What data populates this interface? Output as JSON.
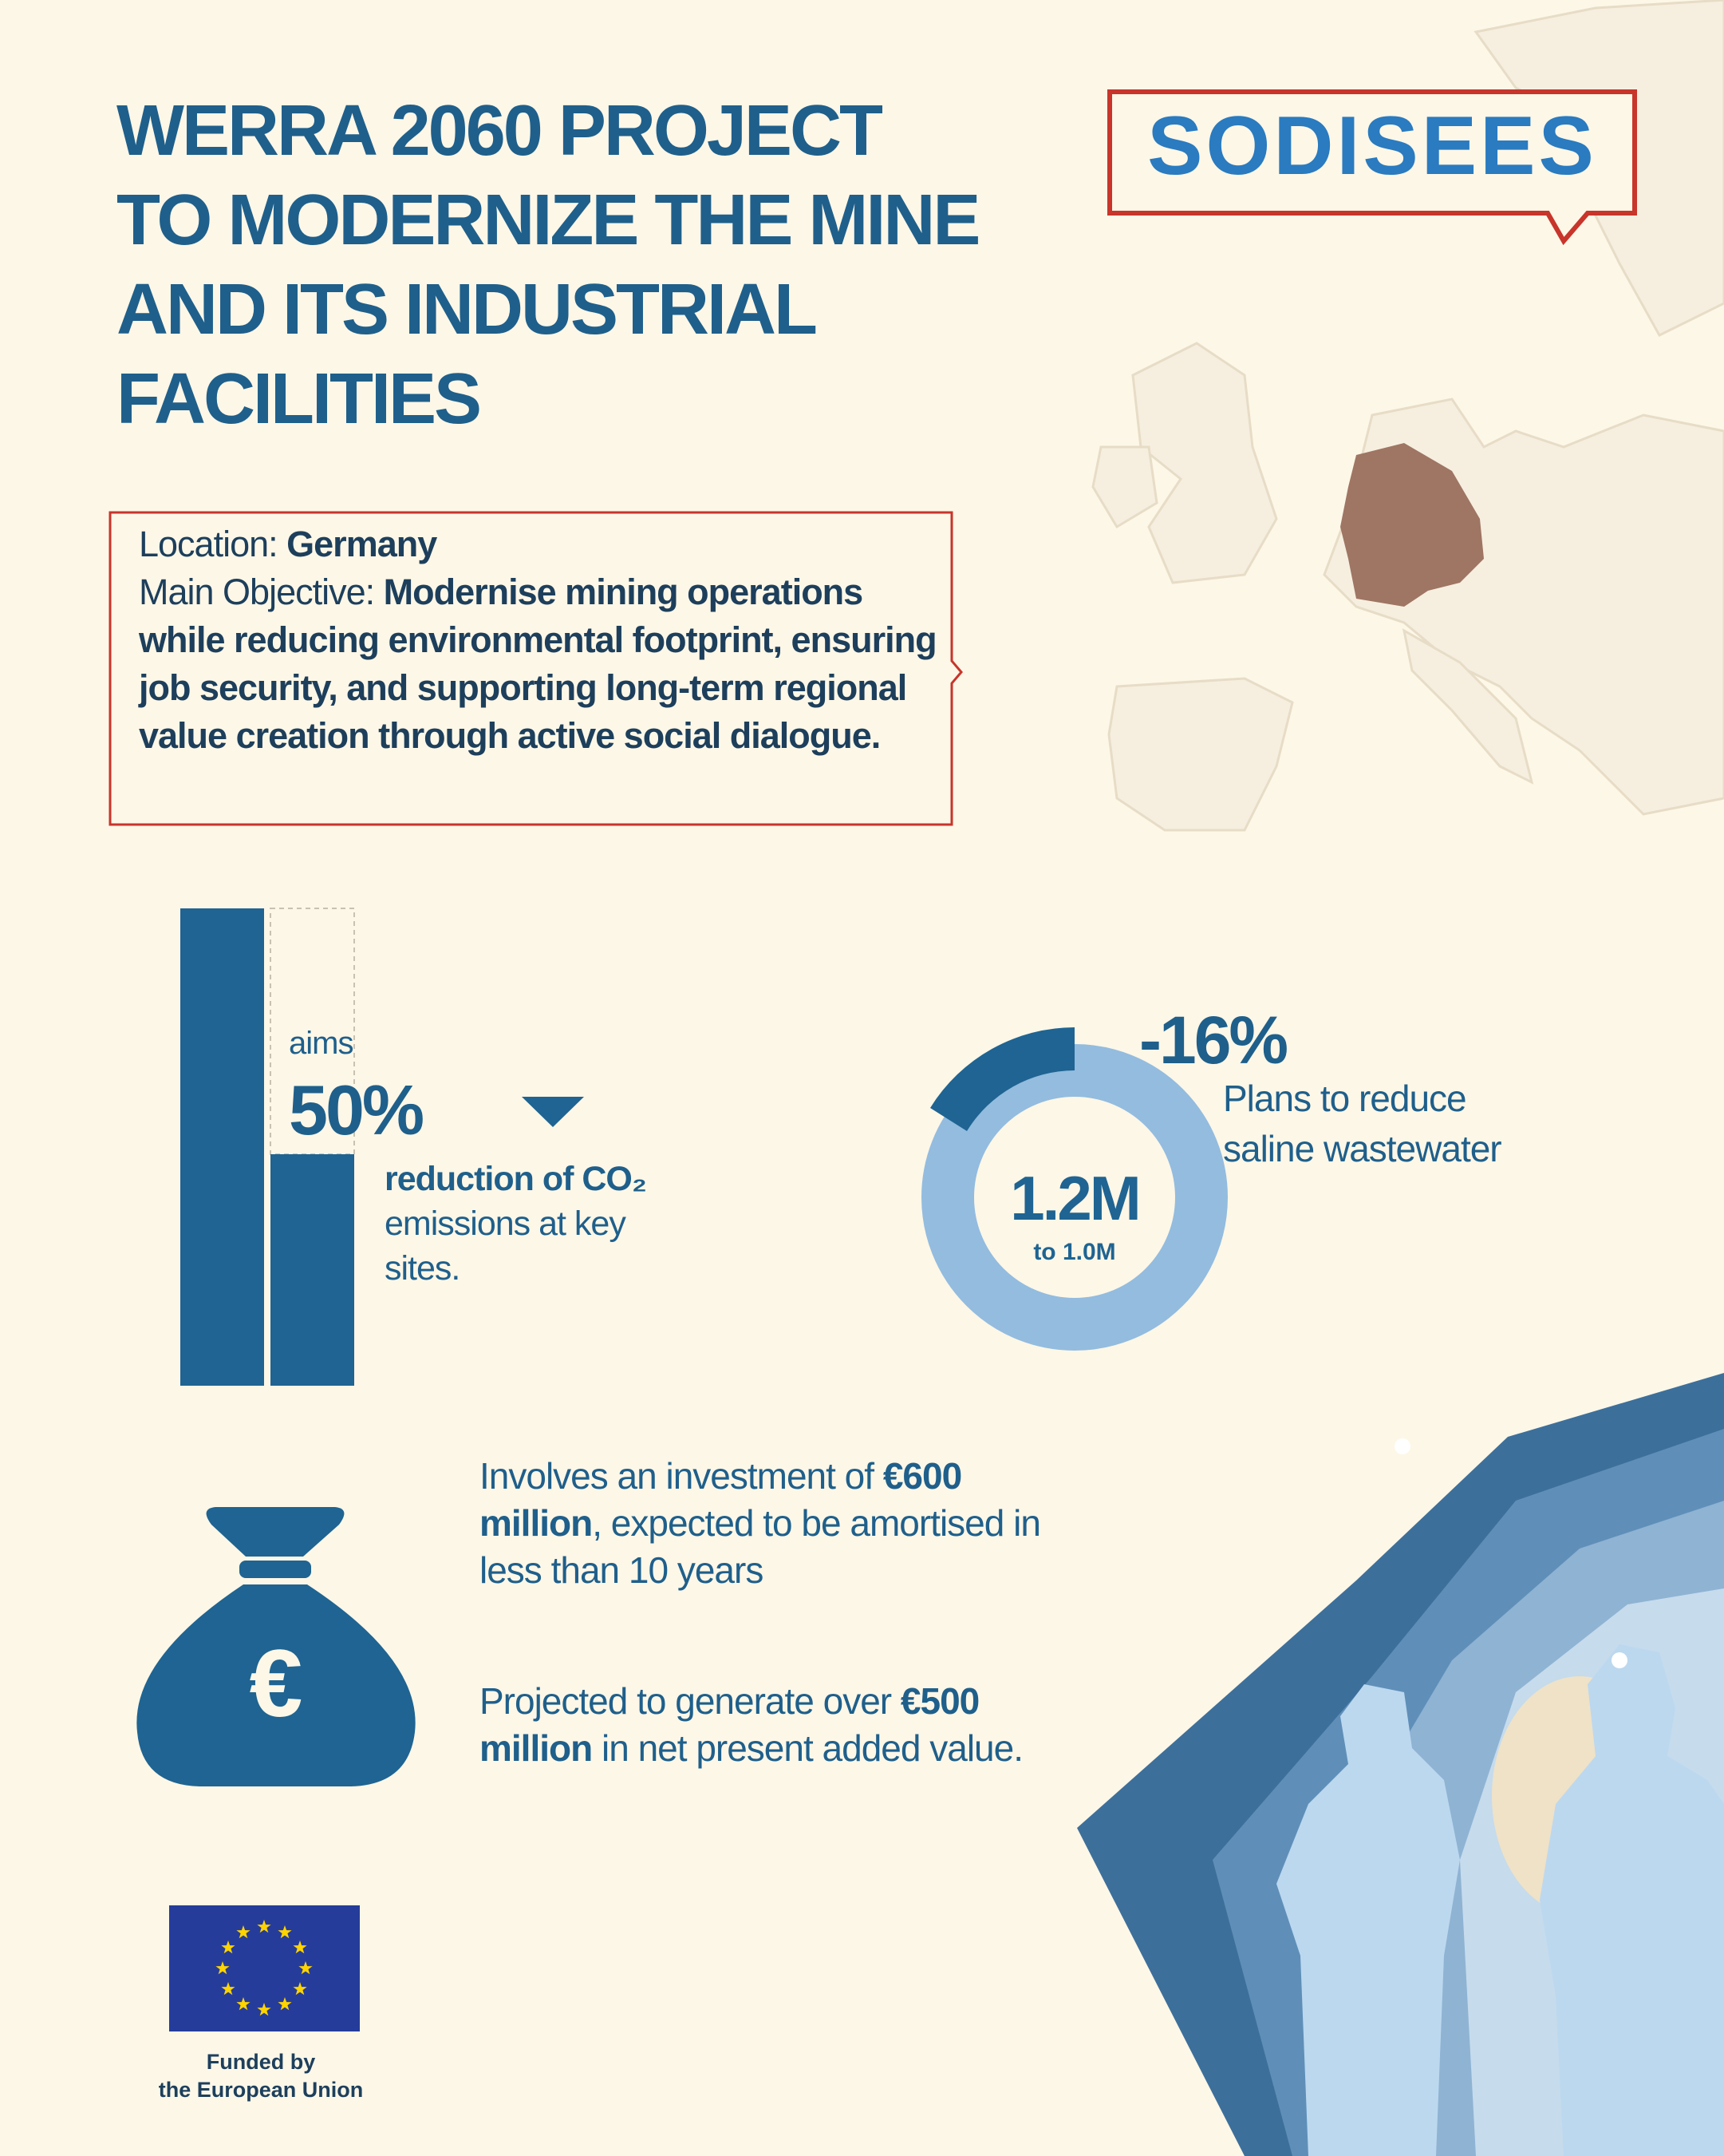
{
  "title": [
    "WERRA 2060 PROJECT",
    "TO MODERNIZE THE MINE",
    "AND ITS INDUSTRIAL",
    "FACILITIES"
  ],
  "logo": "SODISEES",
  "info": {
    "location_label": "Location:",
    "location": "Germany",
    "objective_label": "Main Objective:",
    "objective": "Modernise mining operations while reducing environmental footprint, ensuring job security, and supporting long-term regional value creation through active social dialogue."
  },
  "co2": {
    "prefix": "aims",
    "value": "50%",
    "label_bold": "reduction of CO₂",
    "label": "emissions at key sites."
  },
  "wastewater": {
    "value": "-16%",
    "label": "Plans to reduce saline wastewater",
    "from": "1.2M",
    "to": "to 1.0M"
  },
  "investment": {
    "text": "Involves an investment of",
    "amount": "€600 million",
    "rest": ", expected to be amortised in less than 10 years"
  },
  "value_added": {
    "text": "Projected to generate over",
    "amount": "€500 million",
    "rest": "in net present added value."
  },
  "money_icon": "€",
  "footer": [
    "Funded by",
    "the European Union"
  ]
}
